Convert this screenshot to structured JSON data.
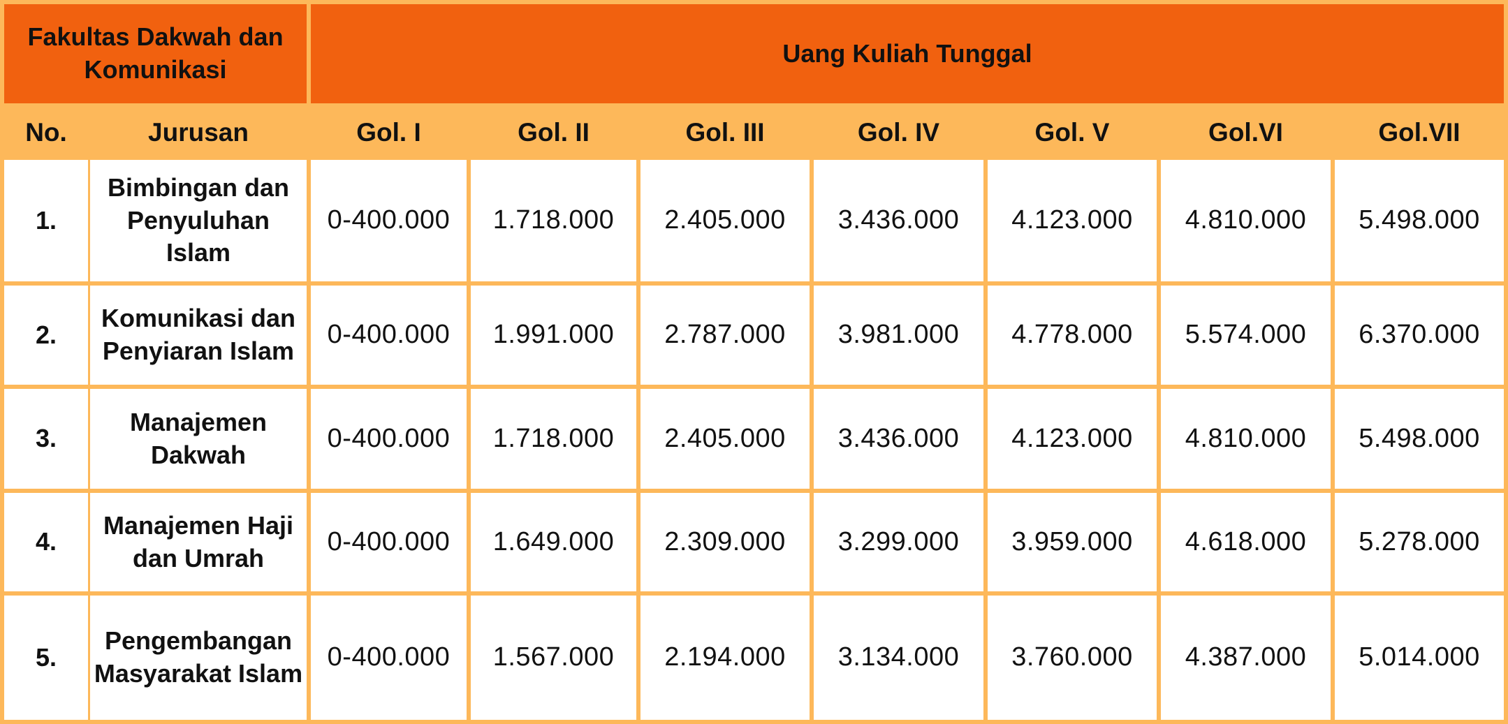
{
  "table": {
    "faculty_header": "Fakultas Dakwah dan Komunikasi",
    "ukt_header": "Uang Kuliah Tunggal",
    "columns": [
      "No.",
      "Jurusan",
      "Gol. I",
      "Gol. II",
      "Gol. III",
      "Gol. IV",
      "Gol. V",
      "Gol.VI",
      "Gol.VII"
    ],
    "rows": [
      [
        "1.",
        "Bimbingan dan Penyuluhan Islam",
        "0-400.000",
        "1.718.000",
        "2.405.000",
        "3.436.000",
        "4.123.000",
        "4.810.000",
        "5.498.000"
      ],
      [
        "2.",
        "Komunikasi dan Penyiaran Islam",
        "0-400.000",
        "1.991.000",
        "2.787.000",
        "3.981.000",
        "4.778.000",
        "5.574.000",
        "6.370.000"
      ],
      [
        "3.",
        "Manajemen Dakwah",
        "0-400.000",
        "1.718.000",
        "2.405.000",
        "3.436.000",
        "4.123.000",
        "4.810.000",
        "5.498.000"
      ],
      [
        "4.",
        "Manajemen Haji dan Umrah",
        "0-400.000",
        "1.649.000",
        "2.309.000",
        "3.299.000",
        "3.959.000",
        "4.618.000",
        "5.278.000"
      ],
      [
        "5.",
        "Pengembangan Masyarakat Islam",
        "0-400.000",
        "1.567.000",
        "2.194.000",
        "3.134.000",
        "3.760.000",
        "4.387.000",
        "5.014.000"
      ]
    ]
  },
  "colors": {
    "header_dark": "#f1610f",
    "header_light": "#fdb85a",
    "cell": "#ffffff"
  }
}
